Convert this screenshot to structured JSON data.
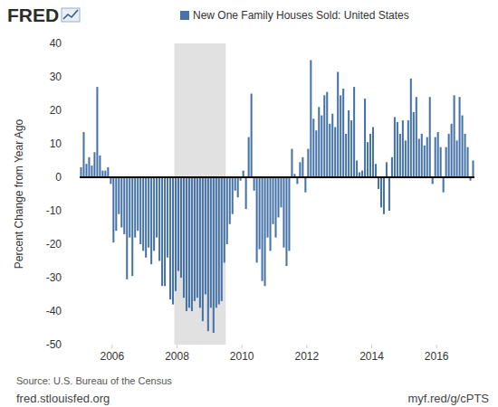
{
  "chart_data": {
    "type": "bar",
    "logo": "FRED",
    "y_label": "Percent Change from Year Ago",
    "source": "Source: U.S. Bureau of the Census",
    "footer_left": "fred.stlouisfed.org",
    "footer_right": "myf.red/g/cPTS",
    "legend": "top",
    "grid": false,
    "ylim": [
      -50,
      40
    ],
    "yticks": [
      -50,
      -40,
      -30,
      -20,
      -10,
      0,
      10,
      20,
      30,
      40
    ],
    "recession": {
      "start": 35,
      "end": 53
    },
    "categories": [
      null,
      null,
      null,
      null,
      null,
      null,
      null,
      null,
      null,
      null,
      null,
      null,
      "2006",
      null,
      null,
      null,
      null,
      null,
      null,
      null,
      null,
      null,
      null,
      null,
      null,
      null,
      null,
      null,
      null,
      null,
      null,
      null,
      null,
      null,
      null,
      null,
      "2008",
      null,
      null,
      null,
      null,
      null,
      null,
      null,
      null,
      null,
      null,
      null,
      null,
      null,
      null,
      null,
      null,
      null,
      null,
      null,
      null,
      null,
      null,
      null,
      "2010",
      null,
      null,
      null,
      null,
      null,
      null,
      null,
      null,
      null,
      null,
      null,
      null,
      null,
      null,
      null,
      null,
      null,
      null,
      null,
      null,
      null,
      null,
      null,
      "2012",
      null,
      null,
      null,
      null,
      null,
      null,
      null,
      null,
      null,
      null,
      null,
      null,
      null,
      null,
      null,
      null,
      null,
      null,
      null,
      null,
      null,
      null,
      null,
      "2014",
      null,
      null,
      null,
      null,
      null,
      null,
      null,
      null,
      null,
      null,
      null,
      null,
      null,
      null,
      null,
      null,
      null,
      null,
      null,
      null,
      null,
      null,
      null,
      "2016",
      null,
      null,
      null,
      null,
      null,
      null,
      null,
      null,
      null,
      null,
      null,
      null,
      null
    ],
    "series": [
      {
        "name": "New One Family Houses Sold: United States",
        "color": "#4572a7",
        "values": [
          3,
          13.5,
          4,
          6,
          3.5,
          7.5,
          27,
          6.5,
          2,
          2,
          3,
          -2,
          -19.5,
          -16,
          -11,
          -15,
          -17,
          -30.5,
          -18,
          -29.5,
          -18,
          -16,
          -20,
          -22,
          -24,
          -21,
          -26,
          -22,
          -18,
          -25,
          -32.5,
          -32.5,
          -24,
          -36.5,
          -38,
          -34,
          -28,
          -30,
          -36,
          -40,
          -39,
          -40,
          -37,
          -36,
          -39,
          -43,
          -35,
          -46,
          -39,
          -46.5,
          -39,
          -38,
          -37,
          -25.5,
          -20,
          -14,
          -11,
          -4,
          -6,
          -1,
          2,
          -9.5,
          12,
          25,
          -4,
          -25.5,
          -21.5,
          -31,
          -32.5,
          -18,
          -22,
          -14,
          -18,
          -12,
          -9,
          -21,
          -26.5,
          -22,
          8.5,
          1,
          -2,
          4.5,
          6,
          -4.5,
          8.5,
          35,
          17.5,
          14,
          21,
          18.5,
          24.5,
          25.5,
          16,
          19,
          15,
          31.5,
          24.5,
          26.5,
          13,
          20,
          17,
          27,
          5,
          1.5,
          2,
          23.5,
          10.5,
          13,
          15,
          4,
          -3.5,
          -9,
          -11,
          4.5,
          -10,
          6,
          18,
          16.5,
          13,
          17,
          11,
          17,
          29.5,
          19.5,
          24,
          11.5,
          13,
          9.5,
          12,
          24,
          -2,
          12,
          13.5,
          9,
          -4.5,
          9,
          13,
          16,
          24.5,
          11,
          24,
          18.5,
          13,
          9,
          -1,
          5
        ]
      }
    ]
  }
}
